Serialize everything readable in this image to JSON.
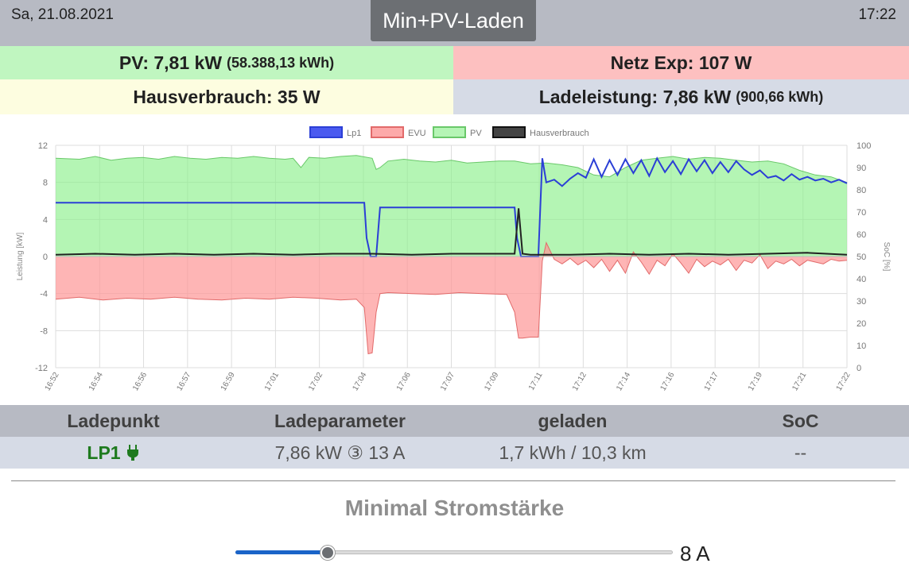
{
  "header": {
    "date": "Sa, 21.08.2021",
    "time": "17:22",
    "mode_button": "Min+PV-Laden"
  },
  "info": {
    "pv_label": "PV: 7,81 kW",
    "pv_total": "(58.388,13 kWh)",
    "netz": "Netz Exp: 107 W",
    "hausverbrauch": "Hausverbrauch: 35 W",
    "ladeleistung": "Ladeleistung: 7,86 kW",
    "lade_total": "(900,66 kWh)"
  },
  "colors": {
    "pv": "#c0f6c0",
    "netz": "#fdc0c0",
    "haus": "#fdfde0",
    "lade": "#d6dbe6",
    "bar": "#b7bac3",
    "lp1": "#2b3fd6",
    "evu_line": "#e26a6a",
    "pv_line": "#69c869",
    "haus_line": "#222222"
  },
  "chart_data": {
    "type": "line",
    "legend": [
      "Lp1",
      "EVU",
      "PV",
      "Hausverbrauch"
    ],
    "legend_placement": "top",
    "ylabel": "Leistung [kW]",
    "y2label": "SoC [%]",
    "ylim": [
      -12,
      12
    ],
    "y_ticks": [
      "12",
      "8",
      "4",
      "0",
      "-4",
      "-8",
      "-12"
    ],
    "y2lim": [
      0,
      100
    ],
    "y2_ticks": [
      "100",
      "90",
      "80",
      "70",
      "60",
      "50",
      "40",
      "30",
      "20",
      "10",
      "0"
    ],
    "x_ticks": [
      "16:52",
      "16:54",
      "16:56",
      "16:57",
      "16:59",
      "17:01",
      "17:02",
      "17:04",
      "17:06",
      "17:07",
      "17:09",
      "17:11",
      "17:12",
      "17:14",
      "17:16",
      "17:17",
      "17:19",
      "17:21",
      "17:22"
    ],
    "grid": true,
    "series": [
      {
        "name": "PV",
        "type": "area",
        "x": [
          0,
          0.03,
          0.05,
          0.07,
          0.09,
          0.11,
          0.13,
          0.15,
          0.17,
          0.19,
          0.21,
          0.23,
          0.25,
          0.27,
          0.29,
          0.3,
          0.31,
          0.32,
          0.34,
          0.36,
          0.38,
          0.4,
          0.405,
          0.41,
          0.42,
          0.44,
          0.46,
          0.48,
          0.5,
          0.52,
          0.54,
          0.56,
          0.58,
          0.6,
          0.62,
          0.64,
          0.66,
          0.68,
          0.7,
          0.72,
          0.74,
          0.76,
          0.78,
          0.8,
          0.82,
          0.84,
          0.86,
          0.88,
          0.9,
          0.92,
          0.94,
          0.96,
          0.98,
          1.0
        ],
        "y": [
          10.6,
          10.5,
          10.8,
          10.4,
          10.6,
          10.7,
          10.5,
          10.8,
          10.6,
          10.5,
          10.7,
          10.6,
          10.8,
          10.6,
          10.5,
          10.6,
          9.6,
          10.7,
          10.6,
          10.8,
          10.9,
          10.6,
          9.4,
          9.6,
          10.3,
          10.5,
          10.3,
          10.2,
          10.4,
          10.1,
          10.2,
          10.3,
          10.3,
          10.0,
          10.1,
          9.9,
          9.6,
          8.8,
          8.6,
          9.6,
          10.4,
          10.6,
          10.8,
          10.5,
          10.7,
          10.6,
          10.4,
          10.2,
          10.3,
          10.0,
          9.3,
          8.8,
          8.6,
          8.0
        ]
      },
      {
        "name": "EVU",
        "type": "area",
        "x": [
          0,
          0.03,
          0.06,
          0.09,
          0.12,
          0.15,
          0.18,
          0.21,
          0.24,
          0.27,
          0.3,
          0.33,
          0.36,
          0.38,
          0.39,
          0.395,
          0.4,
          0.405,
          0.41,
          0.42,
          0.45,
          0.48,
          0.51,
          0.54,
          0.57,
          0.58,
          0.585,
          0.59,
          0.6,
          0.61,
          0.615,
          0.62,
          0.63,
          0.64,
          0.65,
          0.66,
          0.67,
          0.68,
          0.69,
          0.7,
          0.71,
          0.72,
          0.73,
          0.74,
          0.75,
          0.76,
          0.77,
          0.78,
          0.79,
          0.8,
          0.81,
          0.82,
          0.83,
          0.84,
          0.85,
          0.86,
          0.87,
          0.88,
          0.89,
          0.9,
          0.91,
          0.92,
          0.93,
          0.94,
          0.95,
          0.96,
          0.97,
          0.98,
          0.99,
          1.0
        ],
        "y": [
          -4.6,
          -4.4,
          -4.7,
          -4.5,
          -4.6,
          -4.4,
          -4.6,
          -4.7,
          -4.5,
          -4.6,
          -4.4,
          -4.5,
          -4.7,
          -4.6,
          -5.5,
          -10.5,
          -10.4,
          -6.0,
          -4.0,
          -3.9,
          -4.0,
          -4.1,
          -3.9,
          -4.0,
          -4.1,
          -6.0,
          -8.8,
          -8.8,
          -8.7,
          -8.7,
          -0.5,
          1.5,
          -0.3,
          -0.8,
          -0.2,
          -0.9,
          -0.4,
          -1.2,
          -0.3,
          -1.6,
          -0.4,
          -1.8,
          0.5,
          -0.6,
          -1.9,
          -0.4,
          -1.0,
          0.3,
          -0.7,
          -1.8,
          -0.3,
          -1.1,
          -0.5,
          -0.9,
          -0.3,
          -1.5,
          -0.4,
          -0.7,
          0.2,
          -1.3,
          -0.5,
          -0.8,
          -0.3,
          -1.0,
          -0.4,
          -0.6,
          -0.8,
          -0.3,
          -0.5,
          -0.4
        ]
      },
      {
        "name": "Lp1",
        "type": "line",
        "x": [
          0,
          0.05,
          0.1,
          0.15,
          0.2,
          0.25,
          0.3,
          0.35,
          0.39,
          0.393,
          0.398,
          0.405,
          0.41,
          0.45,
          0.5,
          0.55,
          0.58,
          0.583,
          0.588,
          0.6,
          0.61,
          0.615,
          0.62,
          0.63,
          0.64,
          0.65,
          0.66,
          0.67,
          0.68,
          0.69,
          0.7,
          0.71,
          0.72,
          0.73,
          0.74,
          0.75,
          0.76,
          0.77,
          0.78,
          0.79,
          0.8,
          0.81,
          0.82,
          0.83,
          0.84,
          0.85,
          0.86,
          0.87,
          0.88,
          0.89,
          0.9,
          0.91,
          0.92,
          0.93,
          0.94,
          0.95,
          0.96,
          0.97,
          0.98,
          0.99,
          1.0
        ],
        "y": [
          5.8,
          5.8,
          5.8,
          5.8,
          5.8,
          5.8,
          5.8,
          5.8,
          5.8,
          2.0,
          0.0,
          0.0,
          5.3,
          5.3,
          5.3,
          5.3,
          5.3,
          2.0,
          0.0,
          0.0,
          0.0,
          10.6,
          8.0,
          8.3,
          7.6,
          8.4,
          9.0,
          8.5,
          10.5,
          8.6,
          10.4,
          8.8,
          10.5,
          9.0,
          10.4,
          8.7,
          10.6,
          9.1,
          10.3,
          8.9,
          10.5,
          9.2,
          10.4,
          9.0,
          10.2,
          9.1,
          10.3,
          9.4,
          8.8,
          9.3,
          8.5,
          8.7,
          8.2,
          8.9,
          8.3,
          8.6,
          8.2,
          8.4,
          8.0,
          8.3,
          7.9
        ]
      },
      {
        "name": "Hausverbrauch",
        "type": "line",
        "x": [
          0,
          0.05,
          0.1,
          0.15,
          0.2,
          0.25,
          0.3,
          0.35,
          0.4,
          0.45,
          0.5,
          0.55,
          0.58,
          0.585,
          0.59,
          0.6,
          0.65,
          0.7,
          0.75,
          0.8,
          0.85,
          0.9,
          0.95,
          1.0
        ],
        "y": [
          0.2,
          0.3,
          0.2,
          0.3,
          0.2,
          0.3,
          0.2,
          0.3,
          0.3,
          0.2,
          0.3,
          0.3,
          0.3,
          5.2,
          0.3,
          0.2,
          0.2,
          0.3,
          0.2,
          0.3,
          0.2,
          0.3,
          0.4,
          0.2
        ]
      }
    ]
  },
  "table": {
    "headers": [
      "Ladepunkt",
      "Ladeparameter",
      "geladen",
      "SoC"
    ],
    "row": {
      "ladepunkt": "LP1",
      "ladeparameter": "7,86 kW ③ 13 A",
      "geladen": "1,7 kWh / 10,3 km",
      "soc": "--"
    }
  },
  "slider": {
    "label": "Minimal Stromstärke",
    "value_text": "8 A",
    "fraction": 0.21
  }
}
